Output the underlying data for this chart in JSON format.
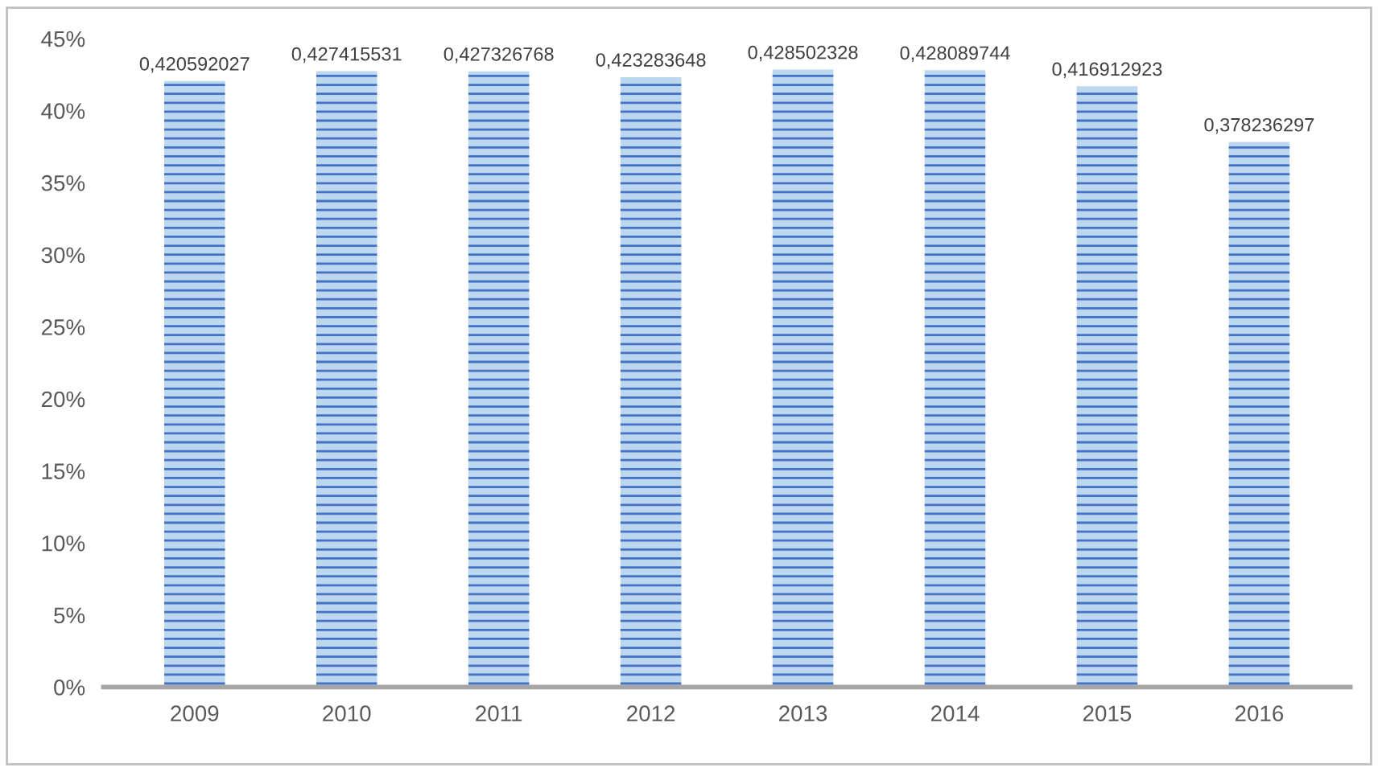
{
  "chart_data": {
    "type": "bar",
    "categories": [
      "2009",
      "2010",
      "2011",
      "2012",
      "2013",
      "2014",
      "2015",
      "2016"
    ],
    "values": [
      0.420592027,
      0.427415531,
      0.427326768,
      0.423283648,
      0.428502328,
      0.428089744,
      0.416912923,
      0.378236297
    ],
    "value_labels": [
      "0,420592027",
      "0,427415531",
      "0,427326768",
      "0,423283648",
      "0,428502328",
      "0,428089744",
      "0,416912923",
      "0,378236297"
    ],
    "color": "#bdd7ee",
    "ylim": [
      0,
      0.45
    ],
    "yticks": [
      {
        "value": 0,
        "label": "0%"
      },
      {
        "value": 0.05,
        "label": "5%"
      },
      {
        "value": 0.1,
        "label": "10%"
      },
      {
        "value": 0.15,
        "label": "15%"
      },
      {
        "value": 0.2,
        "label": "20%"
      },
      {
        "value": 0.25,
        "label": "25%"
      },
      {
        "value": 0.3,
        "label": "30%"
      },
      {
        "value": 0.35,
        "label": "35%"
      },
      {
        "value": 0.4,
        "label": "40%"
      },
      {
        "value": 0.45,
        "label": "45%"
      }
    ],
    "grid": false,
    "legend": false
  }
}
